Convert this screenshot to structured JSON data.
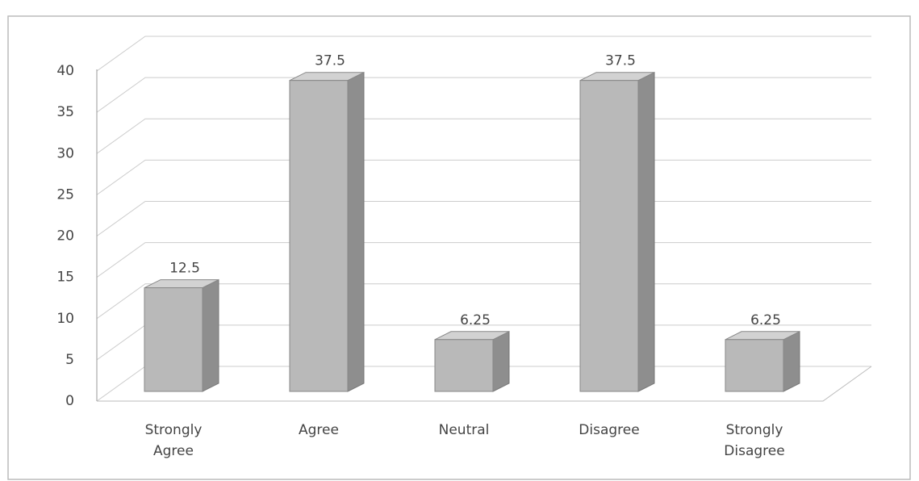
{
  "chart_data": {
    "type": "bar",
    "categories": [
      "Strongly Agree",
      "Agree",
      "Neutral",
      "Disagree",
      "Strongly Disagree"
    ],
    "values": [
      12.5,
      37.5,
      6.25,
      37.5,
      6.25
    ],
    "color": "#b9b9b9",
    "ylim": [
      0,
      40
    ],
    "yticks": [
      0,
      5,
      10,
      15,
      20,
      25,
      30,
      35,
      40
    ],
    "grid": true
  }
}
